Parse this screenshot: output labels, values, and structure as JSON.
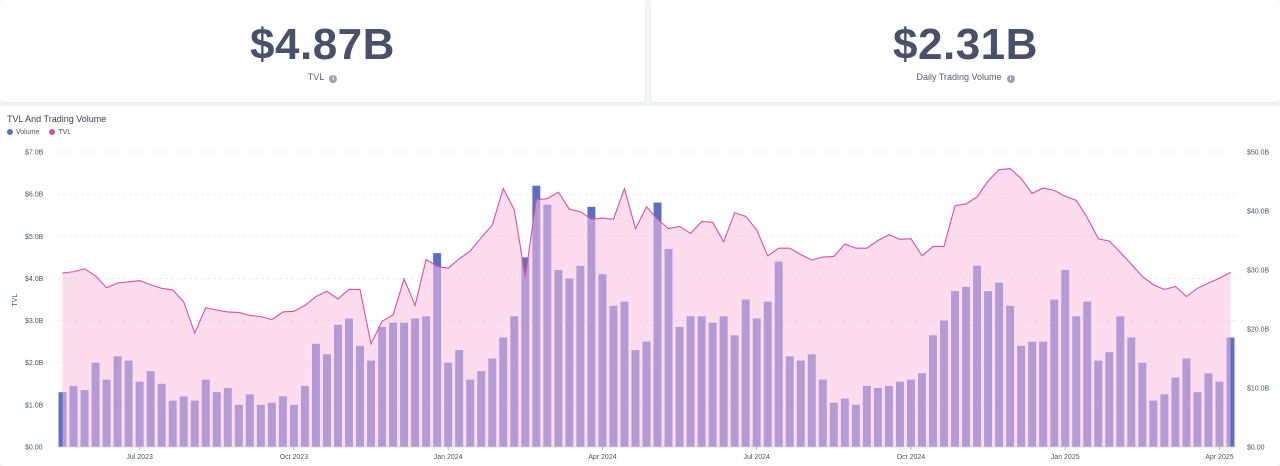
{
  "stats": {
    "tvl": {
      "value": "$4.87B",
      "label": "TVL",
      "info_icon": "info-icon"
    },
    "volume": {
      "value": "$2.31B",
      "label": "Daily Trading Volume",
      "info_icon": "info-icon"
    }
  },
  "colors": {
    "volume": "#5b6fc7",
    "volume_overlap": "#8e62c9",
    "tvl_fill": "#fbbfe0",
    "tvl_line": "#d94fa5",
    "grid": "#e5e7eb"
  },
  "chart_data": {
    "type": "bar",
    "title": "TVL And Trading Volume",
    "legend": [
      "Volume",
      "TVL"
    ],
    "legend_position": "top-left",
    "grid": true,
    "series": [
      {
        "name": "Volume",
        "type": "bar",
        "axis": "left",
        "values": [
          1.3,
          1.45,
          1.35,
          2.0,
          1.6,
          2.15,
          2.05,
          1.55,
          1.8,
          1.5,
          1.1,
          1.2,
          1.1,
          1.6,
          1.3,
          1.4,
          1.0,
          1.25,
          1.0,
          1.05,
          1.2,
          1.0,
          1.45,
          2.45,
          2.2,
          2.9,
          3.05,
          2.4,
          2.05,
          2.85,
          2.95,
          2.95,
          3.05,
          3.1,
          4.6,
          2.0,
          2.3,
          1.6,
          1.8,
          2.1,
          2.6,
          3.1,
          4.5,
          6.2,
          5.75,
          4.2,
          4.0,
          4.3,
          5.7,
          4.1,
          3.35,
          3.45,
          2.3,
          2.5,
          5.8,
          4.7,
          2.85,
          3.1,
          3.1,
          2.95,
          3.1,
          2.65,
          3.5,
          3.05,
          3.45,
          4.4,
          2.15,
          2.05,
          2.2,
          1.6,
          1.05,
          1.15,
          1.0,
          1.45,
          1.4,
          1.45,
          1.55,
          1.6,
          1.75,
          2.65,
          3.0,
          3.7,
          3.8,
          4.3,
          3.7,
          3.9,
          3.35,
          2.4,
          2.5,
          2.5,
          3.5,
          4.2,
          3.1,
          3.45,
          2.05,
          2.25,
          3.1,
          2.6,
          2.0,
          1.1,
          1.25,
          1.65,
          2.1,
          1.3,
          1.75,
          1.55,
          2.6
        ]
      },
      {
        "name": "TVL",
        "type": "area",
        "axis": "right",
        "values": [
          29.5,
          29.7,
          30.2,
          29.0,
          27.0,
          27.8,
          28.0,
          28.2,
          27.5,
          26.9,
          26.6,
          24.6,
          19.3,
          23.6,
          23.2,
          22.9,
          22.8,
          22.3,
          22.1,
          21.6,
          22.9,
          23.0,
          24.0,
          25.5,
          26.4,
          25.1,
          26.7,
          26.7,
          17.5,
          21.3,
          22.4,
          28.5,
          24.0,
          31.8,
          30.6,
          30.3,
          31.9,
          33.2,
          35.5,
          37.6,
          43.8,
          40.2,
          28.9,
          41.9,
          42.1,
          43.2,
          40.3,
          39.9,
          38.6,
          38.8,
          38.6,
          43.8,
          37.0,
          40.7,
          38.6,
          37.0,
          37.4,
          36.2,
          38.2,
          38.1,
          34.8,
          39.7,
          39.1,
          36.8,
          32.4,
          33.7,
          33.7,
          32.6,
          31.7,
          32.2,
          32.3,
          34.4,
          33.7,
          33.7,
          35.0,
          36.0,
          35.2,
          35.3,
          32.4,
          34.0,
          34.0,
          40.9,
          41.2,
          42.4,
          45.1,
          47.0,
          47.2,
          45.5,
          43.0,
          43.9,
          43.5,
          42.5,
          41.8,
          38.9,
          35.3,
          34.9,
          33.0,
          31.0,
          28.9,
          27.5,
          26.7,
          27.2,
          25.5,
          26.9,
          27.8,
          28.6,
          29.6
        ]
      }
    ],
    "left_axis": {
      "label": "TVL",
      "ylim": [
        0,
        7
      ],
      "ticks": [
        "$0.00",
        "$1.0B",
        "$2.0B",
        "$3.0B",
        "$4.0B",
        "$5.0B",
        "$6.0B",
        "$7.0B"
      ]
    },
    "right_axis": {
      "ylim": [
        0,
        50
      ],
      "ticks": [
        "$0.00",
        "$10.0B",
        "$20.0B",
        "$30.0B",
        "$40.0B",
        "$50.0B"
      ]
    },
    "x_tick_labels": [
      {
        "label": "Jul 2023",
        "index": 7
      },
      {
        "label": "Oct 2023",
        "index": 21
      },
      {
        "label": "Jan 2024",
        "index": 35
      },
      {
        "label": "Apr 2024",
        "index": 49
      },
      {
        "label": "Jul 2024",
        "index": 63
      },
      {
        "label": "Oct 2024",
        "index": 77
      },
      {
        "label": "Jan 2025",
        "index": 91
      },
      {
        "label": "Apr 2025",
        "index": 105
      }
    ]
  }
}
